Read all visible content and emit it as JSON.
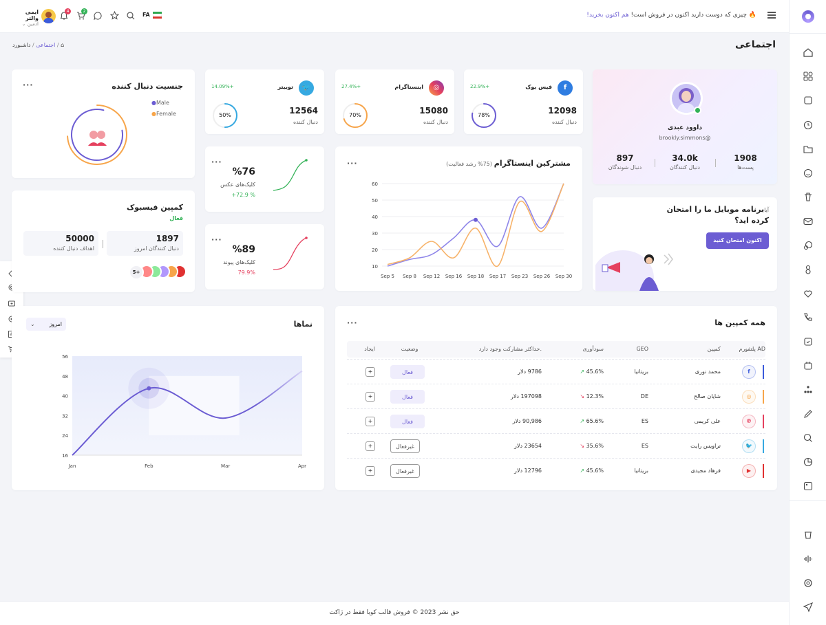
{
  "topbar": {
    "announce_text": "چیزی که دوست دارید اکنون در فروش است!",
    "announce_link": "هم اکنون بخرید!",
    "lang": "FA",
    "notif_count": "4",
    "cart_count": "2",
    "user_name": "ایمی والتر",
    "user_role": "ادمین"
  },
  "page": {
    "title": "اجتماعی",
    "breadcrumb": [
      "داشبورد",
      "اجتماعی"
    ]
  },
  "profile": {
    "name": "داوود عبدی",
    "handle": "brookly.simmons@",
    "stats": [
      {
        "value": "1908",
        "label": "پست‌ها"
      },
      {
        "value": "34.0k",
        "label": "دنبال کنندگان"
      },
      {
        "value": "897",
        "label": "دنبال شوندگان"
      }
    ]
  },
  "social": [
    {
      "name": "فیس بوک",
      "growth": "22.9%+",
      "count": "12098",
      "label": "دنبال کننده",
      "pct": "78%",
      "ring": 0.78,
      "color": "#6c5dd3"
    },
    {
      "name": "اینستاگرام",
      "growth": "27.4%+",
      "count": "15080",
      "label": "دنبال کننده",
      "pct": "70%",
      "ring": 0.7,
      "color": "#f7a54a"
    },
    {
      "name": "توییتر",
      "growth": "14.09%+",
      "count": "12564",
      "label": "دنبال کننده",
      "pct": "50%",
      "ring": 0.5,
      "color": "#36a9e1"
    }
  ],
  "gender": {
    "title": "جنسیت دنبال کننده",
    "legend": [
      "Male",
      "Female"
    ],
    "colors": [
      "#6c5dd3",
      "#f7a54a"
    ]
  },
  "clicks": [
    {
      "value": "%76",
      "label": "کلیک‌های عکس",
      "change": "% 72.9+",
      "color": "#33b257"
    },
    {
      "value": "%89",
      "label": "کلیک‌های پیوند",
      "change": "79.9%",
      "color": "#e5405e"
    }
  ],
  "fbcampaign": {
    "title": "کمپین فیسبوک",
    "status": "فعال",
    "stats": [
      {
        "value": "1897",
        "label": "دنبال کنندگان امروز"
      },
      {
        "value": "50000",
        "label": "اهداف دنبال کننده"
      }
    ],
    "more": "5+"
  },
  "mobile": {
    "title_prefix": "آیا",
    "title": "برنامه موبایل ما را امتحان کرده اید؟",
    "button": "اکنون امتحان کنید"
  },
  "insta_chart": {
    "title": "مشترکین اینستاگرام",
    "subtitle": "(75% رشد فعالیت)"
  },
  "views": {
    "title": "نماها",
    "select": "امروز"
  },
  "campaigns": {
    "title": "همه کمپین ها",
    "headers": [
      "پلتفورم AD",
      "کمپین",
      "GEO",
      "سودآوری",
      "حداکثر مشارکت وجود دارد.",
      "وضعیت",
      "ایجاد"
    ],
    "rows": [
      {
        "platform": "facebook",
        "name": "محمد نوری",
        "geo": "بریتانیا",
        "profit": "45.6%",
        "trend": "up",
        "max": "9786 دلار",
        "status": "فعال",
        "active": true,
        "create": "+",
        "color": "#3b5bdb"
      },
      {
        "platform": "instagram",
        "name": "شایان صالح",
        "geo": "DE",
        "profit": "12.3%",
        "trend": "down",
        "max": "197098 دلار",
        "status": "فعال",
        "active": true,
        "create": "+",
        "color": "#f7a54a"
      },
      {
        "platform": "pinterest",
        "name": "علی کریمی",
        "geo": "ES",
        "profit": "65.6%",
        "trend": "up",
        "max": "90,986 دلار",
        "status": "فعال",
        "active": true,
        "create": "+",
        "color": "#e5405e"
      },
      {
        "platform": "twitter",
        "name": "تراویس رایت",
        "geo": "ES",
        "profit": "35.6%",
        "trend": "down",
        "max": "23654 دلار",
        "status": "غیرفعال",
        "active": false,
        "create": "+",
        "color": "#36a9e1"
      },
      {
        "platform": "youtube",
        "name": "فرهاد مجیدی",
        "geo": "بریتانیا",
        "profit": "45.6%",
        "trend": "up",
        "max": "12796 دلار",
        "status": "غیرفعال",
        "active": false,
        "create": "+",
        "color": "#e03131"
      }
    ]
  },
  "footer": "حق نشر 2023 © فروش قالب کوبا فقط در ژاکت",
  "chart_data": [
    {
      "type": "line",
      "title": "مشترکین اینستاگرام",
      "subtitle": "(75% رشد فعالیت)",
      "categories": [
        "Sep 5",
        "Sep 8",
        "Sep 12",
        "Sep 16",
        "Sep 18",
        "Sep 17",
        "Sep 23",
        "Sep 26",
        "Sep 30"
      ],
      "series": [
        {
          "values": [
            10,
            14,
            17,
            27,
            38,
            22,
            52,
            33,
            60
          ],
          "color": "#8f86e9"
        },
        {
          "values": [
            11,
            15,
            25,
            15,
            33,
            10,
            49,
            31,
            60
          ],
          "color": "#f7b36a"
        }
      ],
      "ylim": [
        10,
        60
      ],
      "yticks": [
        10,
        20,
        30,
        40,
        50,
        60
      ]
    },
    {
      "type": "area",
      "title": "نماها",
      "categories": [
        "Jan",
        "Feb",
        "Mar",
        "Apr"
      ],
      "series": [
        {
          "values": [
            16,
            43,
            31,
            50
          ],
          "color": "#6c5dd3"
        }
      ],
      "highlight": {
        "x": "Feb",
        "y": 43
      },
      "ylim": [
        16,
        56
      ],
      "yticks": [
        16,
        24,
        32,
        40,
        48,
        56
      ]
    }
  ]
}
